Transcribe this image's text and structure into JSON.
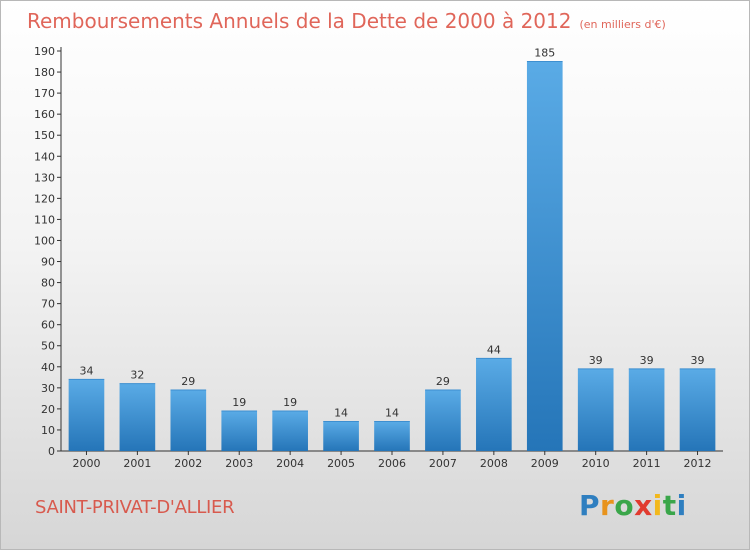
{
  "title": "Remboursements Annuels de la Dette de 2000 à 2012",
  "subtitle": "(en milliers d'€)",
  "commune": "SAINT-PRIVAT-D'ALLIER",
  "logo": {
    "letters": [
      "P",
      "r",
      "o",
      "x",
      "i",
      "t",
      "i"
    ],
    "colors": [
      "#2f7fc0",
      "#e8931c",
      "#3aa64a",
      "#e13b2f",
      "#f2b81d",
      "#3aa64a",
      "#2f7fc0"
    ]
  },
  "colors": {
    "bar_top": "#5aabe6",
    "bar_bottom": "#2575b8",
    "title": "#e0665a"
  },
  "chart_data": {
    "type": "bar",
    "categories": [
      "2000",
      "2001",
      "2002",
      "2003",
      "2004",
      "2005",
      "2006",
      "2007",
      "2008",
      "2009",
      "2010",
      "2011",
      "2012"
    ],
    "values": [
      34,
      32,
      29,
      19,
      19,
      14,
      14,
      29,
      44,
      185,
      39,
      39,
      39
    ],
    "ylim": [
      0,
      190
    ],
    "yticks": [
      0,
      10,
      20,
      30,
      40,
      50,
      60,
      70,
      80,
      90,
      100,
      110,
      120,
      130,
      140,
      150,
      160,
      170,
      180,
      190
    ],
    "grid": false,
    "data_labels": true
  }
}
